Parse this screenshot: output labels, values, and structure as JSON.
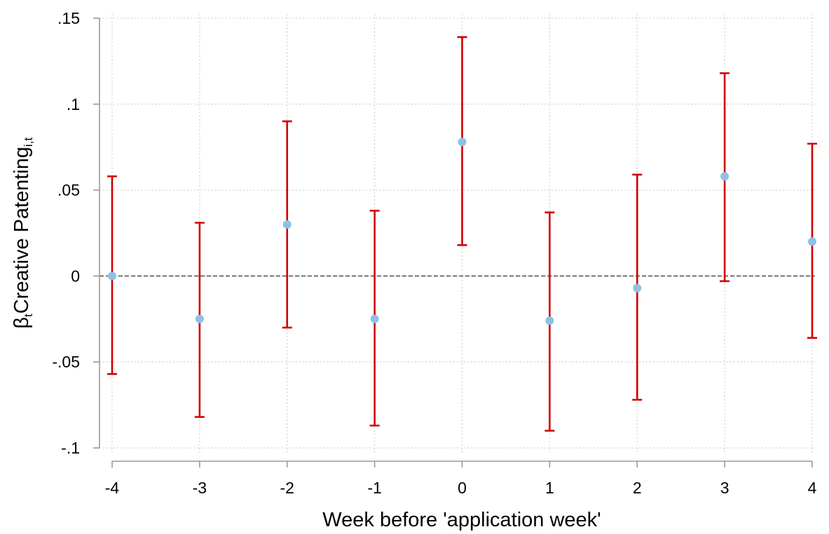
{
  "chart_data": {
    "type": "scatter",
    "subtype": "coefficient-plot-with-confidence-intervals",
    "xlabel": "Week before 'application week'",
    "ylabel": {
      "beta": "β",
      "beta_sub": "t",
      "main": "Creative Patenting",
      "main_sub": "i,t"
    },
    "xlim": [
      -4,
      4
    ],
    "ylim": [
      -0.1,
      0.15
    ],
    "x_ticks": [
      {
        "value": -4,
        "label": "-4"
      },
      {
        "value": -3,
        "label": "-3"
      },
      {
        "value": -2,
        "label": "-2"
      },
      {
        "value": -1,
        "label": "-1"
      },
      {
        "value": 0,
        "label": "0"
      },
      {
        "value": 1,
        "label": "1"
      },
      {
        "value": 2,
        "label": "2"
      },
      {
        "value": 3,
        "label": "3"
      },
      {
        "value": 4,
        "label": "4"
      }
    ],
    "y_ticks": [
      {
        "value": -0.1,
        "label": "-.1"
      },
      {
        "value": -0.05,
        "label": "-.05"
      },
      {
        "value": 0,
        "label": "0"
      },
      {
        "value": 0.05,
        "label": ".05"
      },
      {
        "value": 0.1,
        "label": ".1"
      },
      {
        "value": 0.15,
        "label": ".15"
      }
    ],
    "grid": true,
    "reference_line_y": 0,
    "points": [
      {
        "x": -4,
        "y": 0.0,
        "lower": -0.057,
        "upper": 0.058
      },
      {
        "x": -3,
        "y": -0.025,
        "lower": -0.082,
        "upper": 0.031
      },
      {
        "x": -2,
        "y": 0.03,
        "lower": -0.03,
        "upper": 0.09
      },
      {
        "x": -1,
        "y": -0.025,
        "lower": -0.087,
        "upper": 0.038
      },
      {
        "x": 0,
        "y": 0.078,
        "lower": 0.018,
        "upper": 0.139
      },
      {
        "x": 1,
        "y": -0.026,
        "lower": -0.09,
        "upper": 0.037
      },
      {
        "x": 2,
        "y": -0.007,
        "lower": -0.072,
        "upper": 0.059
      },
      {
        "x": 3,
        "y": 0.058,
        "lower": -0.003,
        "upper": 0.118
      },
      {
        "x": 4,
        "y": 0.02,
        "lower": -0.036,
        "upper": 0.077
      }
    ],
    "colors": {
      "point": "#8ec1e6",
      "error_bar": "#d10000",
      "grid": "#c8c8c8",
      "reference_line": "#707070",
      "axis": "#9a9a9a"
    }
  }
}
